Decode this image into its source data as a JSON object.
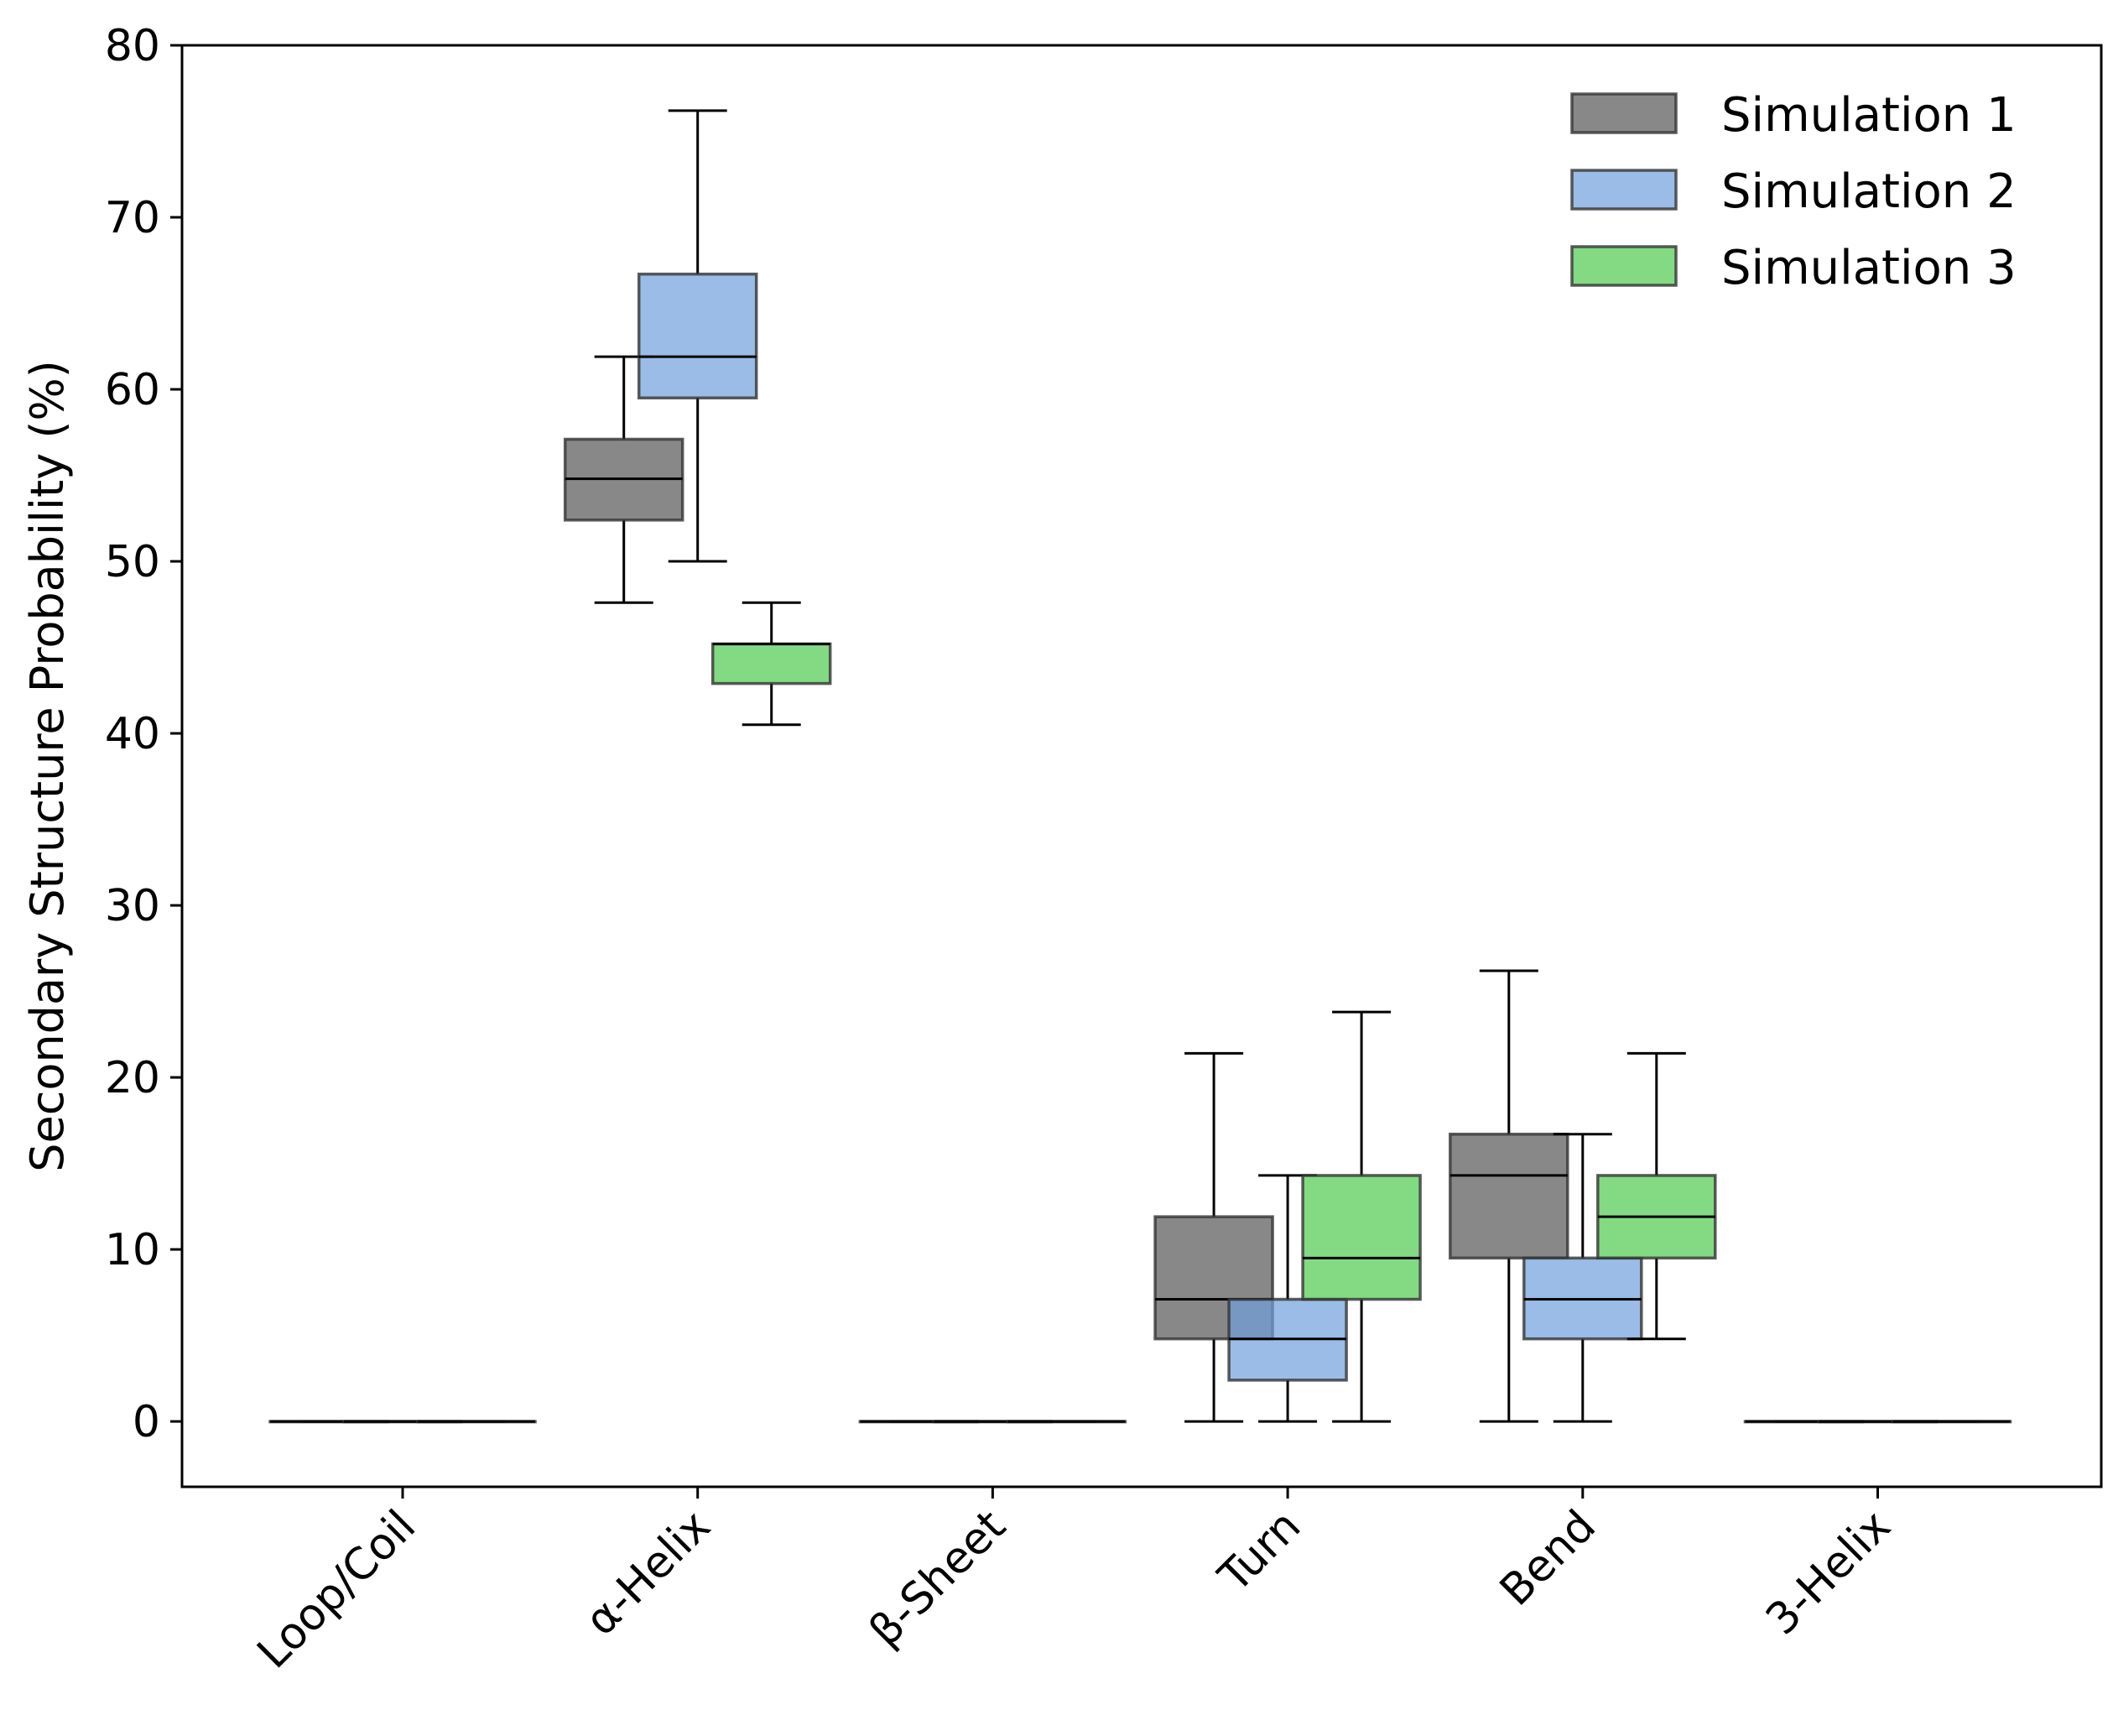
{
  "chart_data": {
    "type": "box",
    "title": "",
    "xlabel": "",
    "ylabel": "Secondary Structure Probability (%)",
    "ylim": [
      -3.8,
      80
    ],
    "yticks": [
      0,
      10,
      20,
      30,
      40,
      50,
      60,
      70,
      80
    ],
    "categories": [
      "Loop/Coil",
      "α-Helix",
      "β-Sheet",
      "Turn",
      "Bend",
      "3-Helix"
    ],
    "legend_position": "top-right",
    "series": [
      {
        "name": "Simulation 1",
        "color": "#555555",
        "boxes": [
          {
            "category": "Loop/Coil",
            "whisker_low": 0,
            "q1": 0,
            "median": 0,
            "q3": 0,
            "whisker_high": 0
          },
          {
            "category": "α-Helix",
            "whisker_low": 47.6,
            "q1": 52.4,
            "median": 54.8,
            "q3": 57.1,
            "whisker_high": 61.9
          },
          {
            "category": "β-Sheet",
            "whisker_low": 0,
            "q1": 0,
            "median": 0,
            "q3": 0,
            "whisker_high": 0
          },
          {
            "category": "Turn",
            "whisker_low": 0,
            "q1": 4.8,
            "median": 7.1,
            "q3": 11.9,
            "whisker_high": 21.4
          },
          {
            "category": "Bend",
            "whisker_low": 0,
            "q1": 9.5,
            "median": 14.3,
            "q3": 16.7,
            "whisker_high": 26.2
          },
          {
            "category": "3-Helix",
            "whisker_low": 0,
            "q1": 0,
            "median": 0,
            "q3": 0,
            "whisker_high": 0
          }
        ]
      },
      {
        "name": "Simulation 2",
        "color": "#6f9fdc",
        "boxes": [
          {
            "category": "Loop/Coil",
            "whisker_low": 0,
            "q1": 0,
            "median": 0,
            "q3": 0,
            "whisker_high": 0
          },
          {
            "category": "α-Helix",
            "whisker_low": 50.0,
            "q1": 59.5,
            "median": 61.9,
            "q3": 66.7,
            "whisker_high": 76.2
          },
          {
            "category": "β-Sheet",
            "whisker_low": 0,
            "q1": 0,
            "median": 0,
            "q3": 0,
            "whisker_high": 0
          },
          {
            "category": "Turn",
            "whisker_low": 0,
            "q1": 2.4,
            "median": 4.8,
            "q3": 7.1,
            "whisker_high": 14.3
          },
          {
            "category": "Bend",
            "whisker_low": 0,
            "q1": 4.8,
            "median": 7.1,
            "q3": 9.5,
            "whisker_high": 16.7
          },
          {
            "category": "3-Helix",
            "whisker_low": 0,
            "q1": 0,
            "median": 0,
            "q3": 0,
            "whisker_high": 0
          }
        ]
      },
      {
        "name": "Simulation 3",
        "color": "#4ecb4e",
        "boxes": [
          {
            "category": "Loop/Coil",
            "whisker_low": 0,
            "q1": 0,
            "median": 0,
            "q3": 0,
            "whisker_high": 0
          },
          {
            "category": "α-Helix",
            "whisker_low": 40.5,
            "q1": 42.9,
            "median": 45.2,
            "q3": 45.2,
            "whisker_high": 47.6
          },
          {
            "category": "β-Sheet",
            "whisker_low": 0,
            "q1": 0,
            "median": 0,
            "q3": 0,
            "whisker_high": 0
          },
          {
            "category": "Turn",
            "whisker_low": 0,
            "q1": 7.1,
            "median": 9.5,
            "q3": 14.3,
            "whisker_high": 23.8
          },
          {
            "category": "Bend",
            "whisker_low": 4.8,
            "q1": 9.5,
            "median": 11.9,
            "q3": 14.3,
            "whisker_high": 21.4
          },
          {
            "category": "3-Helix",
            "whisker_low": 0,
            "q1": 0,
            "median": 0,
            "q3": 0,
            "whisker_high": 0
          }
        ]
      }
    ]
  }
}
